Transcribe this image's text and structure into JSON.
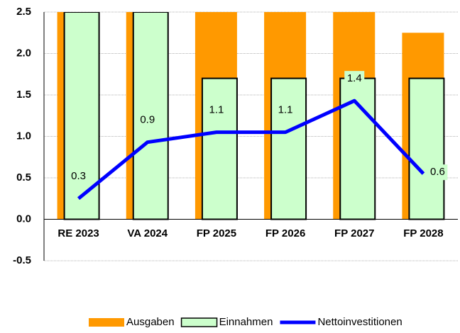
{
  "chart_data": {
    "type": "bar",
    "categories": [
      "RE 2023",
      "VA 2024",
      "FP 2025",
      "FP 2026",
      "FP 2027",
      "FP 2028"
    ],
    "series": [
      {
        "name": "Ausgaben",
        "type": "bar",
        "color": "#ff9900",
        "values": [
          2.5,
          2.5,
          2.5,
          2.5,
          2.5,
          2.25
        ]
      },
      {
        "name": "Einnahmen",
        "type": "bar",
        "color": "#ccffcc",
        "values": [
          2.5,
          2.5,
          1.7,
          1.7,
          1.7,
          1.7
        ]
      },
      {
        "name": "Nettoinvestitionen",
        "type": "line",
        "color": "#0000ff",
        "values": [
          0.25,
          0.93,
          1.05,
          1.05,
          1.43,
          0.55
        ],
        "value_labels": [
          "0.3",
          "0.9",
          "1.1",
          "1.1",
          "1.4",
          "0.6"
        ]
      }
    ],
    "ylim": [
      -0.5,
      2.5
    ],
    "yticks": [
      -0.5,
      {
        "value": 0,
        "label": "0.0"
      },
      0.5,
      {
        "value": 1,
        "label": "1.0"
      },
      1.5,
      {
        "value": 2,
        "label": "2.0"
      },
      2.5
    ],
    "grid": true,
    "legend": "bottom"
  }
}
